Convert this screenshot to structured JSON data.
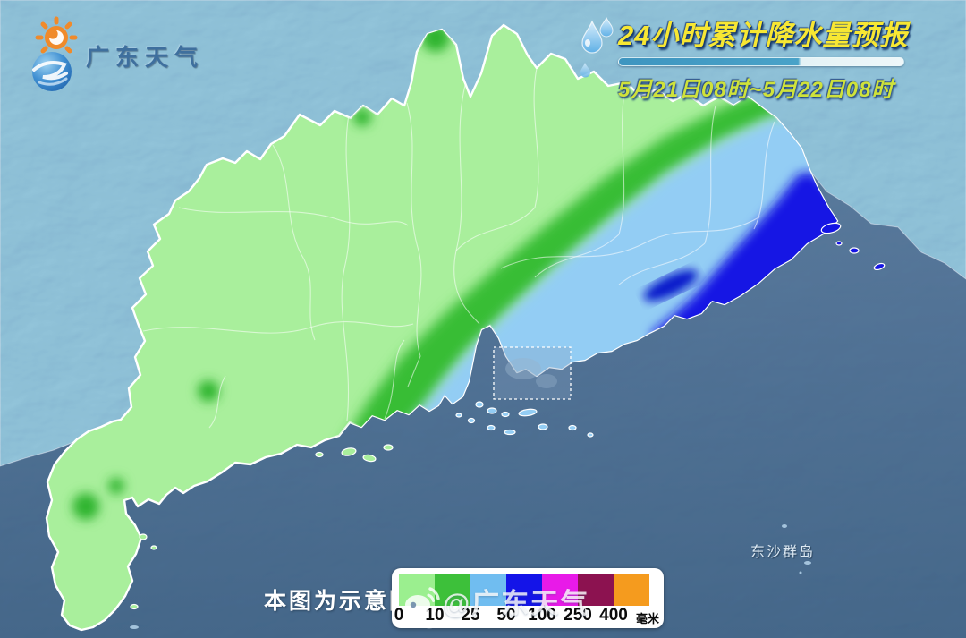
{
  "brand": {
    "name": "广东天气"
  },
  "header": {
    "title": "24小时累计降水量预报",
    "period": "5月21日08时~5月22日08时"
  },
  "map": {
    "disclaimer": "本图为示意图",
    "labels": {
      "dongsha": "东沙群岛"
    },
    "region_colors": {
      "base_light_green": "#a9ef9c",
      "band_green": "#38bd35",
      "band_light_blue": "#93cdf4",
      "band_blue": "#1414e4",
      "band_navy": "#0009c8",
      "blob_green": "#2fb42f",
      "sea": "#446c92",
      "terrain": "#6390b8"
    }
  },
  "legend": {
    "unit": "毫米",
    "thresholds": [
      "0",
      "10",
      "25",
      "50",
      "100",
      "250",
      "400"
    ],
    "colors": [
      "#9bef8f",
      "#3dc03a",
      "#70bdf0",
      "#1414e8",
      "#e81ae8",
      "#8c1250",
      "#f59b1e"
    ]
  },
  "watermark": {
    "text": "@广东天气"
  }
}
